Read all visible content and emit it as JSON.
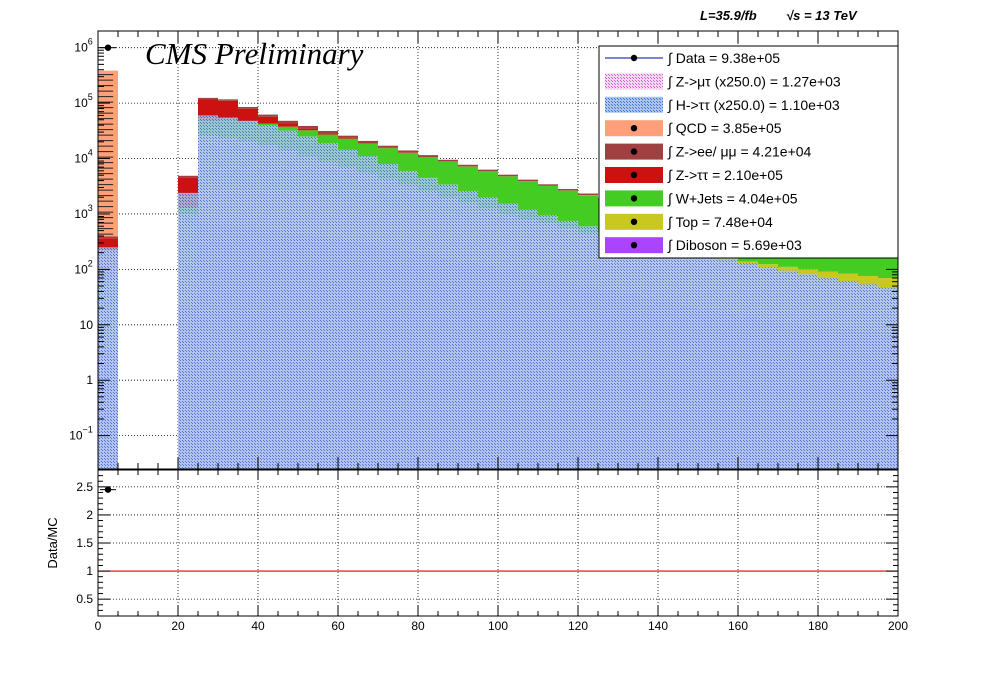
{
  "header": {
    "lumi_label": "L=35.9/fb",
    "energy_label": "√s = 13 TeV",
    "cms_label": "CMS Preliminary"
  },
  "chart_data": [
    {
      "type": "bar",
      "subtype": "stacked-histogram",
      "log_scale_y": true,
      "xlim": [
        0,
        200
      ],
      "ylim": [
        0.025,
        2000000
      ],
      "x_ticks": [
        0,
        20,
        40,
        60,
        80,
        100,
        120,
        140,
        160,
        180,
        200
      ],
      "y_ticks": [
        {
          "value": 0.1,
          "base": "10",
          "exp": "−1"
        },
        {
          "value": 1,
          "base": "1",
          "exp": ""
        },
        {
          "value": 10,
          "base": "10",
          "exp": ""
        },
        {
          "value": 100,
          "base": "10",
          "exp": "2"
        },
        {
          "value": 1000,
          "base": "10",
          "exp": "3"
        },
        {
          "value": 10000,
          "base": "10",
          "exp": "4"
        },
        {
          "value": 100000,
          "base": "10",
          "exp": "5"
        },
        {
          "value": 1000000,
          "base": "10",
          "exp": "6"
        }
      ],
      "grid": true,
      "legend_position": "top-right",
      "bin_edges": [
        0,
        5,
        10,
        15,
        20,
        25,
        30,
        35,
        40,
        45,
        50,
        55,
        60,
        65,
        70,
        75,
        80,
        85,
        90,
        95,
        100,
        105,
        110,
        115,
        120,
        125,
        130,
        135,
        140,
        145,
        150,
        155,
        160,
        165,
        170,
        175,
        180,
        185,
        190,
        195,
        200
      ],
      "stack": [
        {
          "name": "Diboson",
          "color": "#aa44ff",
          "values": [
            3.5,
            0,
            0,
            0,
            22,
            650,
            620,
            570,
            520,
            470,
            420,
            380,
            330,
            290,
            250,
            215,
            185,
            160,
            135,
            115,
            98,
            82,
            70,
            60,
            50,
            42,
            36,
            30,
            26,
            22,
            19,
            16,
            14,
            12,
            11,
            10,
            9,
            8.5,
            8,
            7.5
          ]
        },
        {
          "name": "Top",
          "color": "#c8c81e",
          "values": [
            2,
            0,
            0,
            0,
            60,
            2500,
            2700,
            2500,
            2300,
            2100,
            1900,
            1700,
            1500,
            1300,
            1150,
            1000,
            880,
            780,
            690,
            610,
            540,
            480,
            420,
            370,
            330,
            290,
            255,
            225,
            200,
            180,
            160,
            140,
            125,
            112,
            100,
            90,
            82,
            75,
            68,
            62
          ]
        },
        {
          "name": "W+Jets",
          "color": "#44cc22",
          "values": [
            60,
            0,
            0,
            0,
            1200,
            45000,
            47000,
            44000,
            40000,
            35000,
            30000,
            25000,
            21000,
            17000,
            14000,
            11500,
            9500,
            7800,
            6300,
            5100,
            4100,
            3300,
            2700,
            2200,
            1800,
            1450,
            1200,
            990,
            820,
            680,
            560,
            460,
            380,
            320,
            270,
            230,
            195,
            170,
            150,
            135
          ]
        },
        {
          "name": "Z->ττ",
          "color": "#cc1111",
          "values": [
            300,
            0,
            0,
            0,
            3300,
            70000,
            60000,
            32000,
            14000,
            6000,
            2800,
            1400,
            700,
            380,
            220,
            140,
            95,
            70,
            52,
            40,
            32,
            26,
            21,
            17,
            14,
            12,
            10,
            8,
            7,
            6,
            5,
            4.5,
            4,
            3.5,
            3,
            2.7,
            2.4,
            2.2,
            2,
            1.8
          ]
        },
        {
          "name": "Z->ee/ μμ",
          "color": "#a04040",
          "values": [
            30,
            0,
            0,
            0,
            300,
            6000,
            6500,
            6000,
            5200,
            4400,
            3600,
            2900,
            2300,
            1800,
            1400,
            1100,
            860,
            680,
            540,
            430,
            340,
            270,
            215,
            175,
            140,
            115,
            95,
            78,
            65,
            55,
            46,
            39,
            33,
            28,
            24,
            21,
            18,
            16,
            14,
            12
          ]
        },
        {
          "name": "QCD",
          "color": "#ffa07a",
          "values": [
            385000,
            0,
            0,
            0,
            0,
            0,
            0,
            0,
            0,
            0,
            0,
            0,
            0,
            0,
            0,
            0,
            0,
            0,
            0,
            0,
            0,
            0,
            0,
            0,
            0,
            0,
            0,
            0,
            0,
            0,
            0,
            0,
            0,
            0,
            0,
            0,
            0,
            0,
            0,
            0
          ]
        }
      ],
      "signals": [
        {
          "name": "Z->μτ (x250.0)",
          "color": "#cc66cc",
          "values": [
            220,
            0,
            0,
            0,
            1000,
            26000,
            24000,
            21000,
            17500,
            14000,
            11000,
            8800,
            7000,
            5500,
            4300,
            3400,
            2600,
            2000,
            1600,
            1250,
            1000,
            800,
            680,
            560,
            450,
            390,
            330,
            280,
            230,
            190,
            160,
            135,
            115,
            98,
            85,
            72,
            62,
            54,
            47,
            41
          ]
        },
        {
          "name": "H->ττ (x250.0)",
          "color": "#4477cc",
          "values": [
            250,
            0,
            0,
            0,
            2400,
            60000,
            55000,
            48000,
            40000,
            32000,
            25000,
            19000,
            14500,
            11000,
            8000,
            6000,
            4500,
            3400,
            2600,
            2000,
            1550,
            1200,
            950,
            750,
            600,
            480,
            390,
            320,
            265,
            220,
            185,
            155,
            130,
            110,
            95,
            82,
            71,
            62,
            54,
            47
          ]
        }
      ],
      "data_points": [
        {
          "x": 2.5,
          "y": 1000000
        }
      ],
      "legend": [
        {
          "label": "∫ Data = 9.38e+05",
          "style": "marker-line",
          "color": "#000000"
        },
        {
          "label": "∫ Z->μτ (x250.0) = 1.27e+03",
          "style": "hatch",
          "color": "#cc66cc"
        },
        {
          "label": "∫ H->ττ (x250.0) = 1.10e+03",
          "style": "hatch",
          "color": "#4477cc"
        },
        {
          "label": "∫ QCD = 3.85e+05",
          "style": "fill-marker",
          "color": "#ffa07a"
        },
        {
          "label": "∫ Z->ee/ μμ = 4.21e+04",
          "style": "fill-marker",
          "color": "#a04040"
        },
        {
          "label": "∫ Z->ττ = 2.10e+05",
          "style": "fill-marker",
          "color": "#cc1111"
        },
        {
          "label": "∫ W+Jets = 4.04e+05",
          "style": "fill-marker",
          "color": "#44cc22"
        },
        {
          "label": "∫ Top = 7.48e+04",
          "style": "fill-marker",
          "color": "#c8c81e"
        },
        {
          "label": "∫ Diboson = 5.69e+03",
          "style": "fill-marker",
          "color": "#aa44ff"
        }
      ]
    },
    {
      "type": "scatter",
      "subtype": "ratio-panel",
      "ylabel": "Data/MC",
      "xlim": [
        0,
        200
      ],
      "ylim": [
        0.2,
        2.8
      ],
      "x_ticks": [
        0,
        20,
        40,
        60,
        80,
        100,
        120,
        140,
        160,
        180,
        200
      ],
      "y_ticks": [
        0.5,
        1,
        1.5,
        2,
        2.5
      ],
      "y_tick_labels": [
        "0.5",
        "1",
        "1.5",
        "2",
        "2.5"
      ],
      "grid": true,
      "reference_line": {
        "y": 1,
        "color": "#dd0000"
      },
      "points": [
        {
          "x": 2.5,
          "y": 2.45
        }
      ]
    }
  ]
}
